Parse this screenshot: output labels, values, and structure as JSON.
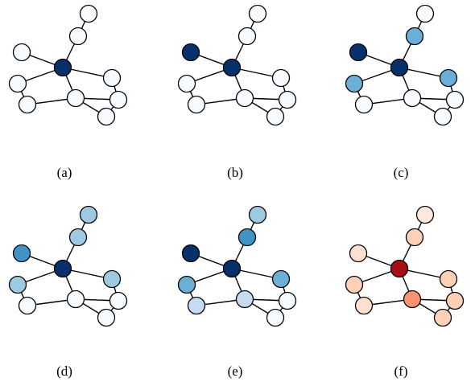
{
  "figure": {
    "panels": [
      {
        "caption": "(a)",
        "fills": [
          "#f7fbff",
          "#f7fbff",
          "#f7fbff",
          "#08306b",
          "#f7fbff",
          "#f7fbff",
          "#f7fbff",
          "#f7fbff",
          "#f7fbff",
          "#f7fbff",
          "#f7fbff"
        ]
      },
      {
        "caption": "(b)",
        "fills": [
          "#f7fbff",
          "#f7fbff",
          "#08306b",
          "#08306b",
          "#f7fbff",
          "#f7fbff",
          "#f7fbff",
          "#f7fbff",
          "#f7fbff",
          "#f7fbff",
          "#f7fbff"
        ]
      },
      {
        "caption": "(c)",
        "fills": [
          "#f7fbff",
          "#6baed6",
          "#08306b",
          "#08306b",
          "#6baed6",
          "#6baed6",
          "#f7fbff",
          "#f7fbff",
          "#f7fbff",
          "#f7fbff",
          "#f7fbff"
        ]
      },
      {
        "caption": "(d)",
        "fills": [
          "#9ecae1",
          "#9ecae1",
          "#4292c6",
          "#08306b",
          "#9ecae1",
          "#9ecae1",
          "#f7fbff",
          "#f7fbff",
          "#f7fbff",
          "#f7fbff",
          "#f7fbff"
        ]
      },
      {
        "caption": "(e)",
        "fills": [
          "#9ecae1",
          "#4292c6",
          "#08306b",
          "#08306b",
          "#6baed6",
          "#6baed6",
          "#c6dbef",
          "#c6dbef",
          "#f7fbff",
          "#f7fbff",
          "#f7fbff"
        ]
      },
      {
        "caption": "(f)",
        "fills": [
          "#fee8dc",
          "#fdd0b8",
          "#fee0d2",
          "#a50f15",
          "#fdd0b8",
          "#fdd0b8",
          "#fee0d2",
          "#fc9272",
          "#fdd0b8",
          "#fdd0b8",
          "#fee0d2"
        ]
      }
    ],
    "colors": {
      "edge": "#000000",
      "node_stroke": "#000000"
    }
  }
}
